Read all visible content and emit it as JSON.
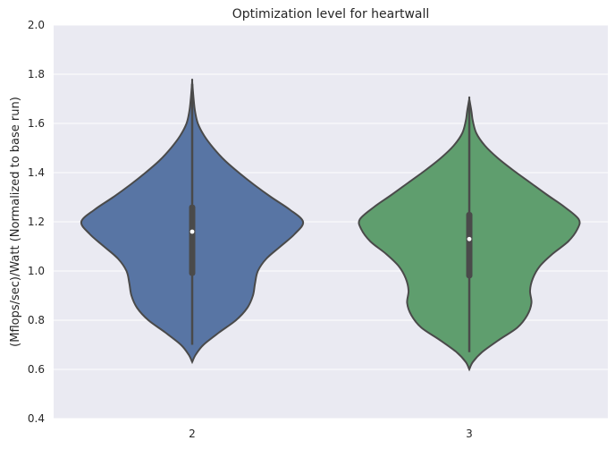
{
  "chart_data": {
    "type": "violin",
    "title": "Optimization level for heartwall",
    "xlabel": "",
    "ylabel": "(Mflops/sec)/Watt (Normalized to base run)",
    "ylim": [
      0.4,
      2.0
    ],
    "yticks": [
      "0.4",
      "0.6",
      "0.8",
      "1.0",
      "1.2",
      "1.4",
      "1.6",
      "1.8",
      "2.0"
    ],
    "grid": true,
    "categories": [
      "2",
      "3"
    ],
    "series": [
      {
        "category": "2",
        "color": "#5875a4",
        "median": 1.16,
        "q1": 0.98,
        "q3": 1.27,
        "whisker_low": 0.7,
        "whisker_high": 1.76,
        "density_profile": [
          [
            0.63,
            0.0
          ],
          [
            0.66,
            0.05
          ],
          [
            0.7,
            0.16
          ],
          [
            0.75,
            0.38
          ],
          [
            0.8,
            0.62
          ],
          [
            0.85,
            0.78
          ],
          [
            0.9,
            0.86
          ],
          [
            0.95,
            0.89
          ],
          [
            1.0,
            0.93
          ],
          [
            1.05,
            1.05
          ],
          [
            1.1,
            1.25
          ],
          [
            1.15,
            1.45
          ],
          [
            1.2,
            1.57
          ],
          [
            1.25,
            1.38
          ],
          [
            1.3,
            1.12
          ],
          [
            1.35,
            0.88
          ],
          [
            1.4,
            0.66
          ],
          [
            1.45,
            0.46
          ],
          [
            1.5,
            0.3
          ],
          [
            1.55,
            0.17
          ],
          [
            1.6,
            0.08
          ],
          [
            1.65,
            0.04
          ],
          [
            1.7,
            0.02
          ],
          [
            1.77,
            0.0
          ]
        ]
      },
      {
        "category": "3",
        "color": "#5f9e6e",
        "median": 1.13,
        "q1": 0.97,
        "q3": 1.24,
        "whisker_low": 0.67,
        "whisker_high": 1.69,
        "density_profile": [
          [
            0.6,
            0.0
          ],
          [
            0.63,
            0.05
          ],
          [
            0.67,
            0.18
          ],
          [
            0.72,
            0.42
          ],
          [
            0.77,
            0.68
          ],
          [
            0.82,
            0.82
          ],
          [
            0.87,
            0.88
          ],
          [
            0.92,
            0.86
          ],
          [
            0.97,
            0.9
          ],
          [
            1.02,
            1.0
          ],
          [
            1.07,
            1.18
          ],
          [
            1.12,
            1.4
          ],
          [
            1.17,
            1.53
          ],
          [
            1.21,
            1.55
          ],
          [
            1.26,
            1.35
          ],
          [
            1.31,
            1.1
          ],
          [
            1.36,
            0.86
          ],
          [
            1.41,
            0.62
          ],
          [
            1.46,
            0.4
          ],
          [
            1.51,
            0.22
          ],
          [
            1.56,
            0.1
          ],
          [
            1.61,
            0.05
          ],
          [
            1.65,
            0.03
          ],
          [
            1.7,
            0.0
          ]
        ]
      }
    ]
  }
}
